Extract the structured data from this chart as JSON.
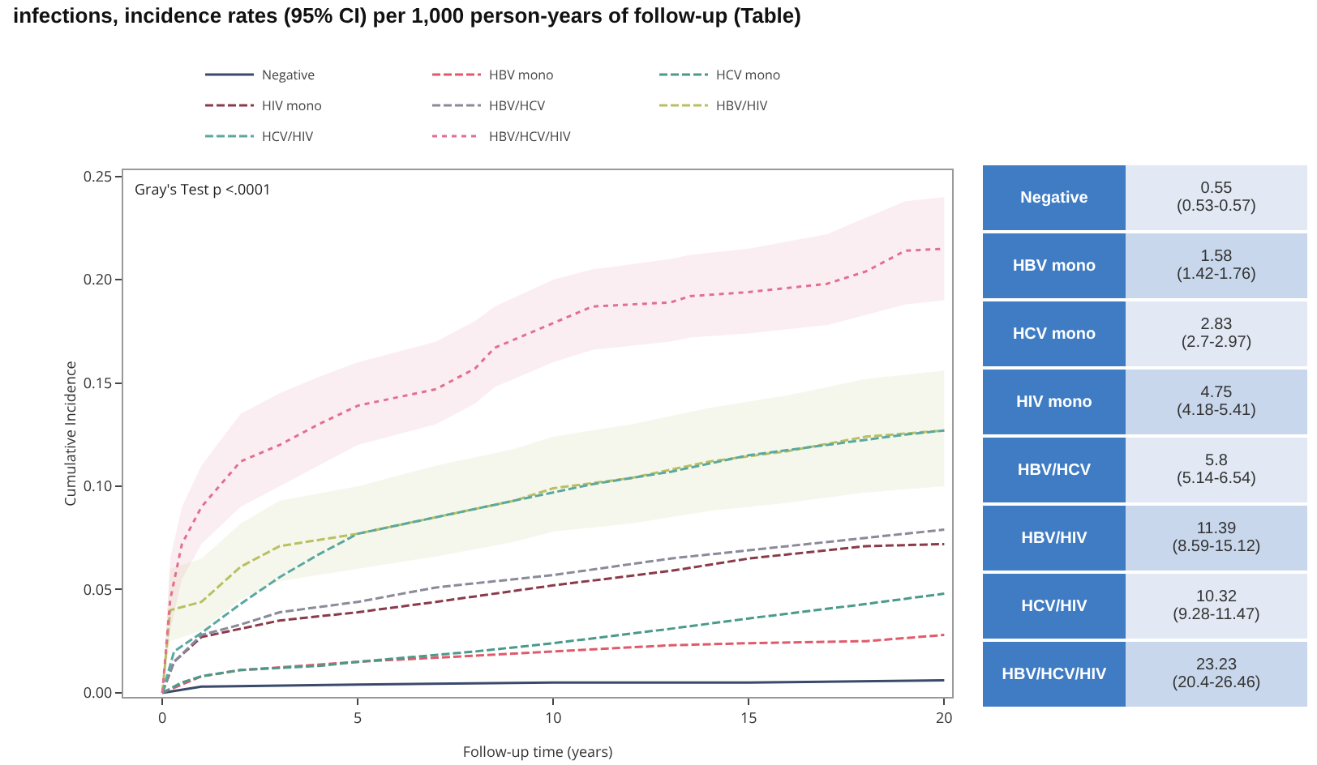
{
  "chart_data": [
    {
      "type": "line",
      "title": "infections, incidence rates (95% CI) per 1,000 person-years of follow-up (Table)",
      "xlabel": "Follow-up time (years)",
      "ylabel": "Cumulative Incidence",
      "annotations": [
        "Gray's Test p <.0001"
      ],
      "xlim": [
        -1,
        20.2
      ],
      "ylim": [
        -0.002,
        0.253
      ],
      "xticks": [
        0,
        5,
        10,
        15,
        20
      ],
      "yticks": [
        {
          "value": 0,
          "label": "0.00"
        },
        {
          "value": 0.05,
          "label": "0.05"
        },
        {
          "value": 0.1,
          "label": "0.10"
        },
        {
          "value": 0.15,
          "label": "0.15"
        },
        {
          "value": 0.2,
          "label": "0.20"
        },
        {
          "value": 0.25,
          "label": "0.25"
        }
      ],
      "grid": false,
      "legend": "top",
      "marker": "none",
      "series": [
        {
          "name": "Negative",
          "color": "#3a4a6a",
          "line_style": "solid",
          "x": [
            0,
            1,
            5,
            10,
            15,
            20
          ],
          "values": [
            0,
            0.003,
            0.004,
            0.005,
            0.005,
            0.006
          ]
        },
        {
          "name": "HBV mono",
          "color": "#e05a6a",
          "line_style": "dashed",
          "x": [
            0,
            1,
            2,
            5,
            7,
            10,
            13,
            15,
            18,
            20
          ],
          "values": [
            0,
            0.008,
            0.011,
            0.015,
            0.017,
            0.02,
            0.023,
            0.024,
            0.025,
            0.028
          ]
        },
        {
          "name": "HCV mono",
          "color": "#4a9a8a",
          "line_style": "dashed",
          "x": [
            0,
            0.5,
            1,
            2,
            4,
            5,
            8,
            10,
            13,
            15,
            18,
            20
          ],
          "values": [
            0,
            0.005,
            0.008,
            0.011,
            0.013,
            0.015,
            0.02,
            0.024,
            0.031,
            0.036,
            0.043,
            0.048
          ]
        },
        {
          "name": "HIV mono",
          "color": "#8a3a4a",
          "line_style": "dashed",
          "x": [
            0,
            0.3,
            1,
            2,
            3,
            5,
            7,
            10,
            13,
            15,
            18,
            20
          ],
          "values": [
            0,
            0.015,
            0.027,
            0.031,
            0.035,
            0.039,
            0.044,
            0.052,
            0.059,
            0.065,
            0.071,
            0.072
          ]
        },
        {
          "name": "HBV/HCV",
          "color": "#8a8a9a",
          "line_style": "dashed",
          "x": [
            0,
            0.3,
            1,
            2,
            3,
            5,
            7,
            10,
            13,
            16,
            18,
            20
          ],
          "values": [
            0,
            0.015,
            0.028,
            0.033,
            0.039,
            0.044,
            0.051,
            0.057,
            0.065,
            0.071,
            0.075,
            0.079
          ]
        },
        {
          "name": "HBV/HIV",
          "color": "#b8c060",
          "line_style": "dashed",
          "x": [
            0,
            0.2,
            1,
            2,
            3,
            5,
            7,
            9,
            10,
            12,
            14,
            16,
            18,
            20
          ],
          "values": [
            0,
            0.04,
            0.044,
            0.061,
            0.071,
            0.077,
            0.085,
            0.093,
            0.099,
            0.104,
            0.112,
            0.117,
            0.124,
            0.127
          ],
          "lower": [
            0,
            0.025,
            0.03,
            0.045,
            0.054,
            0.06,
            0.066,
            0.073,
            0.078,
            0.082,
            0.088,
            0.092,
            0.097,
            0.1
          ],
          "upper": [
            0,
            0.06,
            0.065,
            0.082,
            0.093,
            0.1,
            0.11,
            0.118,
            0.124,
            0.13,
            0.138,
            0.144,
            0.152,
            0.156
          ]
        },
        {
          "name": "HCV/HIV",
          "color": "#5aa8a0",
          "line_style": "dashed",
          "x": [
            0,
            0.3,
            1,
            2,
            3,
            4,
            5,
            7,
            9,
            11,
            13,
            15,
            17,
            19,
            20
          ],
          "values": [
            0,
            0.02,
            0.029,
            0.043,
            0.056,
            0.067,
            0.077,
            0.085,
            0.093,
            0.101,
            0.107,
            0.115,
            0.12,
            0.125,
            0.127
          ]
        },
        {
          "name": "HBV/HCV/HIV",
          "color": "#e07090",
          "line_style": "dotted",
          "x": [
            0,
            0.2,
            0.5,
            1,
            2,
            3,
            4,
            5,
            6,
            7,
            8,
            8.5,
            10,
            11,
            13,
            13.5,
            15,
            17,
            18,
            19,
            20
          ],
          "values": [
            0,
            0.045,
            0.072,
            0.09,
            0.112,
            0.12,
            0.13,
            0.139,
            0.143,
            0.147,
            0.157,
            0.167,
            0.179,
            0.187,
            0.189,
            0.192,
            0.194,
            0.198,
            0.204,
            0.214,
            0.215
          ],
          "lower": [
            0,
            0.03,
            0.055,
            0.072,
            0.09,
            0.1,
            0.11,
            0.12,
            0.125,
            0.13,
            0.14,
            0.148,
            0.16,
            0.166,
            0.17,
            0.172,
            0.174,
            0.178,
            0.183,
            0.188,
            0.19
          ],
          "upper": [
            0,
            0.065,
            0.09,
            0.11,
            0.135,
            0.145,
            0.153,
            0.16,
            0.165,
            0.17,
            0.18,
            0.187,
            0.2,
            0.205,
            0.21,
            0.212,
            0.215,
            0.222,
            0.23,
            0.238,
            0.24
          ]
        }
      ]
    },
    {
      "type": "other",
      "categories": [
        "Negative",
        "HBV mono",
        "HCV mono",
        "HIV mono",
        "HBV/HCV",
        "HBV/HIV",
        "HCV/HIV",
        "HBV/HCV/HIV"
      ],
      "value_labels": [
        "0.55",
        "1.58",
        "2.83",
        "4.75",
        "5.8",
        "11.39",
        "10.32",
        "23.23"
      ],
      "annotations": [
        "(0.53-0.57)",
        "(1.42-1.76)",
        "(2.7-2.97)",
        "(4.18-5.41)",
        "(5.14-6.54)",
        "(8.59-15.12)",
        "(9.28-11.47)",
        "(20.4-26.46)"
      ]
    }
  ]
}
